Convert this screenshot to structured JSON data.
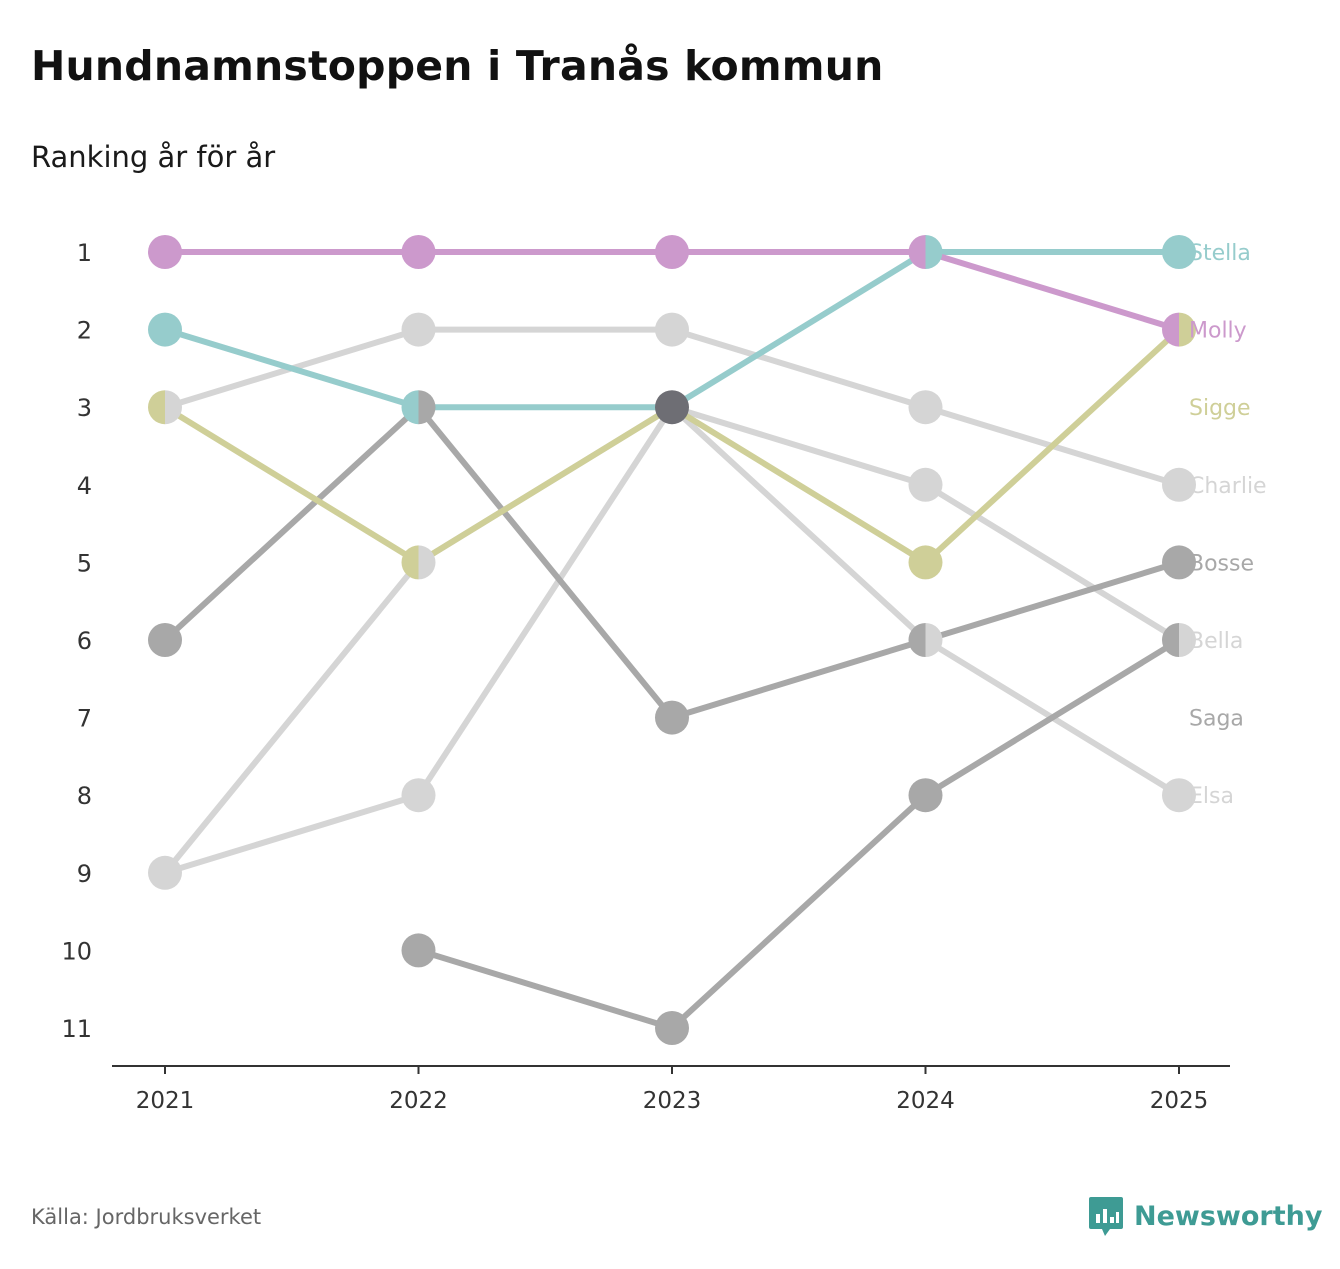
{
  "header": {
    "title": "Hundnamnstoppen i Tranås kommun",
    "subtitle": "Ranking år för år"
  },
  "footer": {
    "source": "Källa: Jordbruksverket",
    "brand": "Newsworthy"
  },
  "chart_data": {
    "type": "line",
    "subtype": "bump",
    "title": "Hundnamnstoppen i Tranås kommun",
    "subtitle": "Ranking år för år",
    "x": [
      "2021",
      "2022",
      "2023",
      "2024",
      "2025"
    ],
    "y_ticks": [
      "1",
      "2",
      "3",
      "4",
      "5",
      "6",
      "7",
      "8",
      "9",
      "10",
      "11"
    ],
    "ylim": [
      1,
      11
    ],
    "y_inverted": true,
    "series": [
      {
        "name": "Elsa",
        "color": "#d5d5d5",
        "values": [
          9,
          8,
          3,
          6,
          8
        ]
      },
      {
        "name": "Bella",
        "color": "#d5d5d5",
        "values": [
          9,
          5,
          3,
          4,
          6
        ]
      },
      {
        "name": "Charlie",
        "color": "#d5d5d5",
        "values": [
          3,
          2,
          2,
          3,
          4
        ]
      },
      {
        "name": "Saga",
        "color": "#a8a8a8",
        "values": [
          null,
          10,
          11,
          8,
          6
        ]
      },
      {
        "name": "Bosse",
        "color": "#a8a8a8",
        "values": [
          6,
          3,
          7,
          6,
          5
        ]
      },
      {
        "name": "Sigge",
        "color": "#cfcf98",
        "values": [
          3,
          5,
          3,
          5,
          2
        ]
      },
      {
        "name": "Stella",
        "color": "#96cccc",
        "values": [
          2,
          3,
          3,
          1,
          1
        ]
      },
      {
        "name": "Molly",
        "color": "#cc99cc",
        "values": [
          1,
          1,
          1,
          1,
          2
        ]
      }
    ],
    "end_labels": [
      {
        "name": "Stella",
        "rank": 1,
        "color": "#96cccc"
      },
      {
        "name": "Molly",
        "rank": 2,
        "color": "#cc99cc"
      },
      {
        "name": "Sigge",
        "rank": 3,
        "color": "#cfcf98"
      },
      {
        "name": "Charlie",
        "rank": 4,
        "color": "#d5d5d5"
      },
      {
        "name": "Bosse",
        "rank": 5,
        "color": "#a8a8a8"
      },
      {
        "name": "Bella",
        "rank": 6,
        "color": "#d5d5d5"
      },
      {
        "name": "Saga",
        "rank": 7,
        "color": "#a8a8a8"
      },
      {
        "name": "Elsa",
        "rank": 8,
        "color": "#d5d5d5"
      }
    ],
    "shared_marker_color": "#6e6e74",
    "legend": "none"
  }
}
